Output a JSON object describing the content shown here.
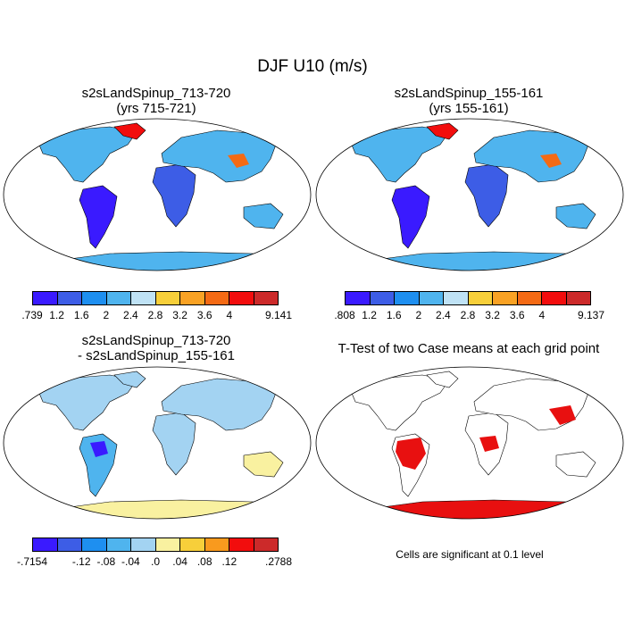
{
  "main_title": "DJF U10 (m/s)",
  "panels": [
    {
      "title_line1": "s2sLandSpinup_713-720",
      "title_line2": "(yrs 715-721)"
    },
    {
      "title_line1": "s2sLandSpinup_155-161",
      "title_line2": "(yrs 155-161)"
    },
    {
      "title_line1": "s2sLandSpinup_713-720",
      "title_line2": "- s2sLandSpinup_155-161"
    },
    {
      "title_line1": "T-Test of two Case means at each grid point",
      "title_line2": ""
    }
  ],
  "colorbars": [
    {
      "labels": [
        ".739",
        "1.2",
        "1.6",
        "2",
        "2.4",
        "2.8",
        "3.2",
        "3.6",
        "4",
        "9.141"
      ],
      "colors": [
        "#3a1aff",
        "#3d5de6",
        "#1e8ff0",
        "#4fb4ee",
        "#bfe2f5",
        "#f7cf3a",
        "#f9a224",
        "#f46a14",
        "#f20d0d",
        "#cc2a2a"
      ]
    },
    {
      "labels": [
        ".808",
        "1.2",
        "1.6",
        "2",
        "2.4",
        "2.8",
        "3.2",
        "3.6",
        "4",
        "9.137"
      ],
      "colors": [
        "#3a1aff",
        "#3d5de6",
        "#1e8ff0",
        "#4fb4ee",
        "#bfe2f5",
        "#f7cf3a",
        "#f9a224",
        "#f46a14",
        "#f20d0d",
        "#cc2a2a"
      ]
    },
    {
      "labels": [
        "-.7154",
        "-.12",
        "-.08",
        "-.04",
        ".0",
        ".04",
        ".08",
        ".12",
        ".2788"
      ],
      "colors": [
        "#3a1aff",
        "#3d5de6",
        "#1e8ff0",
        "#4fb4ee",
        "#a3d3f2",
        "#f9f1a0",
        "#f7cf3a",
        "#f99a1e",
        "#f20d0d",
        "#cc2a2a"
      ]
    }
  ],
  "ttest_note": "Cells are significant at 0.1 level"
}
